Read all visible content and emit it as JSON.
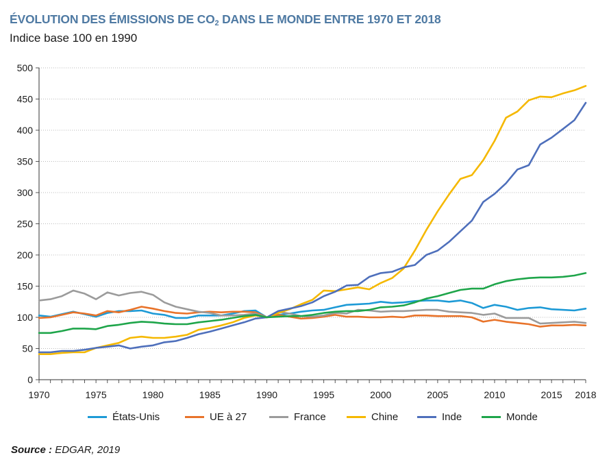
{
  "header": {
    "title_main": "ÉVOLUTION DES ÉMISSIONS DE CO",
    "title_sub": "2",
    "title_end": " DANS LE MONDE ENTRE 1970 ET 2018",
    "subtitle": "Indice base 100 en 1990"
  },
  "source": {
    "label": "Source :",
    "text": "EDGAR, 2019"
  },
  "chart_data": {
    "type": "line",
    "title": "ÉVOLUTION DES ÉMISSIONS DE CO2 DANS LE MONDE ENTRE 1970 ET 2018",
    "subtitle": "Indice base 100 en 1990",
    "xlabel": "",
    "ylabel": "",
    "xlim": [
      1970,
      2018
    ],
    "ylim": [
      0,
      500
    ],
    "grid": true,
    "legend_position": "bottom",
    "x_ticks": [
      "1970",
      "1975",
      "1980",
      "1985",
      "1990",
      "1995",
      "2000",
      "2005",
      "2010",
      "2015",
      "2018"
    ],
    "x_tick_values": [
      1970,
      1975,
      1980,
      1985,
      1990,
      1995,
      2000,
      2005,
      2010,
      2015,
      2018
    ],
    "y_ticks": [
      "0",
      "50",
      "100",
      "150",
      "200",
      "250",
      "300",
      "350",
      "400",
      "450",
      "500"
    ],
    "y_tick_values": [
      0,
      50,
      100,
      150,
      200,
      250,
      300,
      350,
      400,
      450,
      500
    ],
    "x": [
      1970,
      1971,
      1972,
      1973,
      1974,
      1975,
      1976,
      1977,
      1978,
      1979,
      1980,
      1981,
      1982,
      1983,
      1984,
      1985,
      1986,
      1987,
      1988,
      1989,
      1990,
      1991,
      1992,
      1993,
      1994,
      1995,
      1996,
      1997,
      1998,
      1999,
      2000,
      2001,
      2002,
      2003,
      2004,
      2005,
      2006,
      2007,
      2008,
      2009,
      2010,
      2011,
      2012,
      2013,
      2014,
      2015,
      2016,
      2017,
      2018
    ],
    "series": [
      {
        "name": "États-Unis",
        "color": "#1d9ad6",
        "values": [
          103,
          101,
          105,
          109,
          105,
          101,
          107,
          110,
          110,
          111,
          106,
          104,
          99,
          99,
          103,
          103,
          103,
          106,
          110,
          111,
          100,
          104,
          106,
          109,
          111,
          112,
          116,
          120,
          121,
          122,
          125,
          123,
          124,
          126,
          127,
          127,
          125,
          127,
          123,
          115,
          120,
          117,
          112,
          115,
          116,
          113,
          112,
          111,
          114
        ]
      },
      {
        "name": "UE à 27",
        "color": "#e8732a",
        "values": [
          99,
          100,
          104,
          108,
          106,
          103,
          110,
          108,
          112,
          117,
          114,
          110,
          107,
          106,
          108,
          109,
          108,
          109,
          109,
          108,
          100,
          104,
          101,
          98,
          99,
          101,
          104,
          101,
          101,
          100,
          100,
          101,
          100,
          103,
          103,
          102,
          102,
          102,
          100,
          93,
          96,
          93,
          91,
          89,
          85,
          87,
          87,
          88,
          87
        ]
      },
      {
        "name": "France",
        "color": "#9b9b9b",
        "values": [
          127,
          129,
          134,
          143,
          138,
          129,
          140,
          135,
          139,
          141,
          136,
          124,
          117,
          113,
          109,
          107,
          103,
          103,
          104,
          106,
          100,
          109,
          106,
          102,
          101,
          103,
          107,
          106,
          112,
          111,
          109,
          110,
          110,
          111,
          112,
          112,
          109,
          108,
          107,
          104,
          106,
          99,
          99,
          99,
          90,
          91,
          92,
          93,
          91
        ]
      },
      {
        "name": "Chine",
        "color": "#f5b800",
        "values": [
          41,
          41,
          43,
          44,
          44,
          51,
          55,
          59,
          67,
          69,
          67,
          67,
          69,
          72,
          80,
          83,
          87,
          92,
          99,
          103,
          100,
          107,
          113,
          121,
          128,
          143,
          142,
          145,
          148,
          145,
          155,
          163,
          178,
          207,
          240,
          270,
          297,
          322,
          328,
          352,
          383,
          420,
          430,
          448,
          454,
          453,
          459,
          464,
          471
        ]
      },
      {
        "name": "Inde",
        "color": "#4e6fbb",
        "values": [
          44,
          44,
          46,
          46,
          48,
          51,
          53,
          55,
          50,
          53,
          55,
          60,
          62,
          67,
          73,
          77,
          82,
          87,
          92,
          98,
          100,
          110,
          114,
          118,
          124,
          134,
          141,
          151,
          152,
          165,
          171,
          173,
          180,
          184,
          200,
          207,
          221,
          238,
          255,
          285,
          298,
          315,
          337,
          344,
          377,
          388,
          402,
          416,
          444
        ]
      },
      {
        "name": "Monde",
        "color": "#1ea54a",
        "values": [
          75,
          75,
          78,
          82,
          82,
          81,
          86,
          88,
          91,
          93,
          92,
          90,
          89,
          89,
          92,
          94,
          96,
          99,
          102,
          104,
          100,
          101,
          102,
          102,
          104,
          107,
          109,
          110,
          110,
          112,
          116,
          117,
          119,
          124,
          130,
          134,
          139,
          144,
          146,
          146,
          153,
          158,
          161,
          163,
          164,
          164,
          165,
          167,
          171
        ]
      }
    ]
  }
}
